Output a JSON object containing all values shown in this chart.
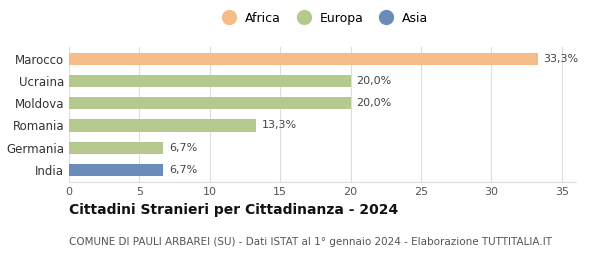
{
  "categories": [
    "India",
    "Germania",
    "Romania",
    "Moldova",
    "Ucraina",
    "Marocco"
  ],
  "values": [
    6.7,
    6.7,
    13.3,
    20.0,
    20.0,
    33.3
  ],
  "labels": [
    "6,7%",
    "6,7%",
    "13,3%",
    "20,0%",
    "20,0%",
    "33,3%"
  ],
  "colors": [
    "#6b8cba",
    "#b5c98e",
    "#b5c98e",
    "#b5c98e",
    "#b5c98e",
    "#f5bc8a"
  ],
  "legend_labels": [
    "Africa",
    "Europa",
    "Asia"
  ],
  "legend_colors": [
    "#f5bc8a",
    "#b5c98e",
    "#6b8cba"
  ],
  "title": "Cittadini Stranieri per Cittadinanza - 2024",
  "subtitle": "COMUNE DI PAULI ARBAREI (SU) - Dati ISTAT al 1° gennaio 2024 - Elaborazione TUTTITALIA.IT",
  "xlim": [
    0,
    36
  ],
  "xticks": [
    0,
    5,
    10,
    15,
    20,
    25,
    30,
    35
  ],
  "bar_height": 0.55,
  "background_color": "#ffffff",
  "grid_color": "#dddddd",
  "title_fontsize": 10,
  "subtitle_fontsize": 7.5,
  "label_fontsize": 8,
  "ytick_fontsize": 8.5,
  "xtick_fontsize": 8,
  "legend_fontsize": 9
}
